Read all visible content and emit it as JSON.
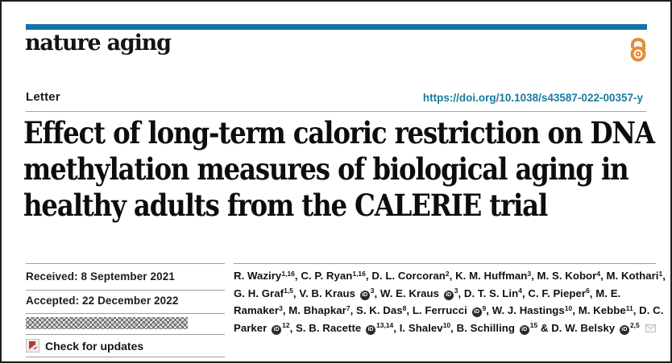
{
  "journal": {
    "name": "nature aging"
  },
  "header": {
    "article_type": "Letter",
    "doi": "https://doi.org/10.1038/s43587-022-00357-y"
  },
  "title_lines": [
    "Effect of long-term caloric restriction on DNA",
    "methylation measures of biological aging in",
    "healthy adults from the CALERIE trial"
  ],
  "dates": {
    "received": "Received: 8 September 2021",
    "accepted": "Accepted: 22 December 2022",
    "published_redacted": true
  },
  "check_for_updates_label": "Check for updates",
  "authors": [
    {
      "name": "R. Waziry",
      "sup": "1,16",
      "orcid": false
    },
    {
      "name": "C. P. Ryan",
      "sup": "1,16",
      "orcid": false
    },
    {
      "name": "D. L. Corcoran",
      "sup": "2",
      "orcid": false
    },
    {
      "name": "K. M. Huffman",
      "sup": "3",
      "orcid": false
    },
    {
      "name": "M. S. Kobor",
      "sup": "4",
      "orcid": false
    },
    {
      "name": "M. Kothari",
      "sup": "1",
      "orcid": false
    },
    {
      "name": "G. H. Graf",
      "sup": "1,5",
      "orcid": false
    },
    {
      "name": "V. B. Kraus",
      "sup": "3",
      "orcid": true
    },
    {
      "name": "W. E. Kraus",
      "sup": "3",
      "orcid": true
    },
    {
      "name": "D. T. S. Lin",
      "sup": "4",
      "orcid": false
    },
    {
      "name": "C. F. Pieper",
      "sup": "6",
      "orcid": false
    },
    {
      "name": "M. E. Ramaker",
      "sup": "3",
      "orcid": false
    },
    {
      "name": "M. Bhapkar",
      "sup": "7",
      "orcid": false
    },
    {
      "name": "S. K. Das",
      "sup": "8",
      "orcid": false
    },
    {
      "name": "L. Ferrucci",
      "sup": "9",
      "orcid": true
    },
    {
      "name": "W. J. Hastings",
      "sup": "10",
      "orcid": false
    },
    {
      "name": "M. Kebbe",
      "sup": "11",
      "orcid": false
    },
    {
      "name": "D. C. Parker",
      "sup": "12",
      "orcid": true
    },
    {
      "name": "S. B. Racette",
      "sup": "13,14",
      "orcid": true
    },
    {
      "name": "I. Shalev",
      "sup": "10",
      "orcid": false
    },
    {
      "name": "B. Schilling",
      "sup": "15",
      "orcid": true
    },
    {
      "name": "D. W. Belsky",
      "sup": "2,5",
      "orcid": true,
      "corresponding": true
    }
  ],
  "icons": {
    "open_access": "open-access-padlock",
    "orcid": "orcid-id",
    "crossmark": "check-for-updates-crossmark",
    "email": "corresponding-author-envelope"
  },
  "colors": {
    "masthead_bar": "#1573a6",
    "doi_link": "#1b7a9e",
    "open_access_orange": "#e98b35",
    "crossmark_red": "#b03a34",
    "text": "#111111"
  }
}
